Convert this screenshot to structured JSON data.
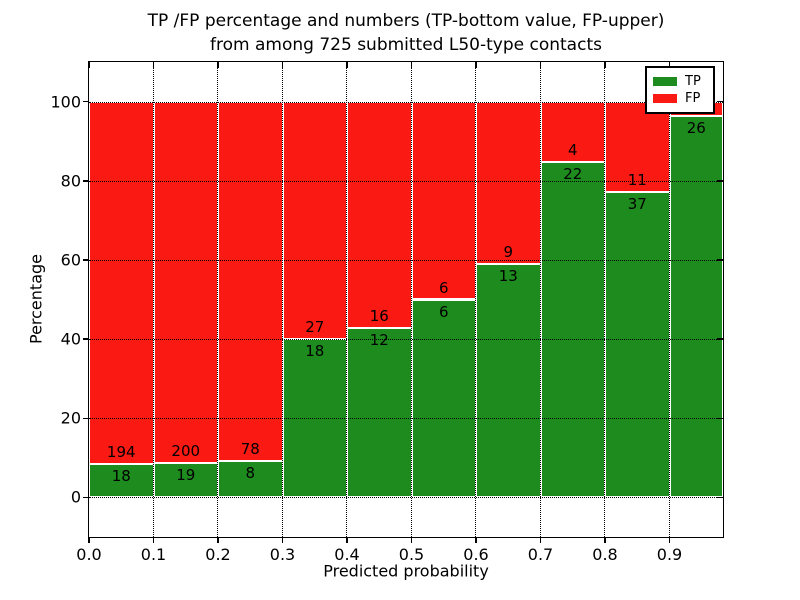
{
  "chart_data": {
    "type": "bar",
    "stacked": true,
    "title_line1": "TP /FP percentage and numbers (TP-bottom value, FP-upper)",
    "title_line2": "from among 725 submitted L50-type contacts",
    "xlabel": "Predicted probability",
    "ylabel": "Percentage",
    "x_tick_labels": [
      "0.0",
      "0.1",
      "0.2",
      "0.3",
      "0.4",
      "0.5",
      "0.6",
      "0.7",
      "0.8",
      "0.9"
    ],
    "y_tick_values": [
      0,
      20,
      40,
      60,
      80,
      100
    ],
    "ylim": [
      -10,
      110
    ],
    "grid": "dotted black, drawn over bars",
    "colors": {
      "tp": "#1e8b1e",
      "fp": "#fb1a13",
      "bar_edge": "#ffffff",
      "grid": "#000000",
      "background": "#ffffff"
    },
    "legend": {
      "position": "upper right",
      "entries": [
        {
          "label": "TP",
          "color_key": "tp"
        },
        {
          "label": "FP",
          "color_key": "fp"
        }
      ]
    },
    "bars": [
      {
        "x_start": 0.0,
        "x_end": 0.1,
        "tp_count": 18,
        "fp_count": 194,
        "tp_pct": 8.49,
        "tp_label": "18",
        "fp_label": "194"
      },
      {
        "x_start": 0.1,
        "x_end": 0.2,
        "tp_count": 19,
        "fp_count": 200,
        "tp_pct": 8.68,
        "tp_label": "19",
        "fp_label": "200"
      },
      {
        "x_start": 0.2,
        "x_end": 0.3,
        "tp_count": 8,
        "fp_count": 78,
        "tp_pct": 9.3,
        "tp_label": "8",
        "fp_label": "78"
      },
      {
        "x_start": 0.3,
        "x_end": 0.4,
        "tp_count": 18,
        "fp_count": 27,
        "tp_pct": 40.0,
        "tp_label": "18",
        "fp_label": "27"
      },
      {
        "x_start": 0.4,
        "x_end": 0.5,
        "tp_count": 12,
        "fp_count": 16,
        "tp_pct": 42.86,
        "tp_label": "12",
        "fp_label": "16"
      },
      {
        "x_start": 0.5,
        "x_end": 0.6,
        "tp_count": 6,
        "fp_count": 6,
        "tp_pct": 50.0,
        "tp_label": "6",
        "fp_label": "6"
      },
      {
        "x_start": 0.6,
        "x_end": 0.7,
        "tp_count": 13,
        "fp_count": 9,
        "tp_pct": 59.09,
        "tp_label": "13",
        "fp_label": "9"
      },
      {
        "x_start": 0.7,
        "x_end": 0.8,
        "tp_count": 22,
        "fp_count": 4,
        "tp_pct": 84.62,
        "tp_label": "22",
        "fp_label": "4"
      },
      {
        "x_start": 0.8,
        "x_end": 0.9,
        "tp_count": 37,
        "fp_count": 11,
        "tp_pct": 77.08,
        "tp_label": "37",
        "fp_label": "11"
      },
      {
        "x_start": 0.9,
        "x_end": 1.0,
        "tp_count": 26,
        "tp_pct": 96.3,
        "tp_label": "26",
        "fp_label": ""
      }
    ]
  }
}
